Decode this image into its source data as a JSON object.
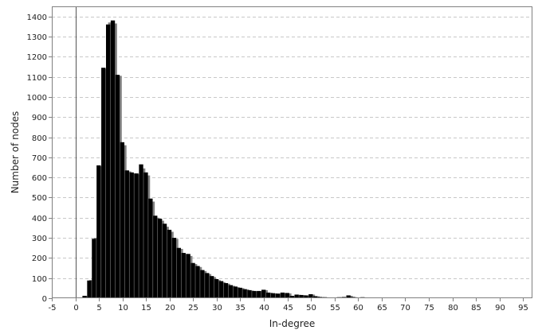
{
  "chart_data": {
    "type": "bar",
    "title": "",
    "xlabel": "In-degree",
    "ylabel": "Number of nodes",
    "xlim": [
      -5,
      97
    ],
    "ylim": [
      0,
      1450
    ],
    "x_ticks": [
      -5,
      0,
      5,
      10,
      15,
      20,
      25,
      30,
      35,
      40,
      45,
      50,
      55,
      60,
      65,
      70,
      75,
      80,
      85,
      90,
      95
    ],
    "y_ticks": [
      0,
      100,
      200,
      300,
      400,
      500,
      600,
      700,
      800,
      900,
      1000,
      1100,
      1200,
      1300,
      1400
    ],
    "grid": "horizontal dashed",
    "legend": "none",
    "colors": {
      "series_front": "#000000",
      "series_back": "#808080",
      "grid": "#c8c8c8",
      "zero_line": "#555555"
    },
    "series": [
      {
        "x": [
          1,
          2,
          3,
          4,
          5,
          6,
          7,
          8,
          9,
          10,
          11,
          12,
          13,
          14,
          15,
          16,
          17,
          18,
          19,
          20,
          21,
          22,
          23,
          24,
          25,
          26,
          27,
          28,
          29,
          30,
          31,
          32,
          33,
          34,
          35,
          36,
          37,
          38,
          39,
          40,
          41,
          42,
          43,
          44,
          45,
          46,
          47,
          48,
          49,
          50,
          51,
          52,
          53,
          54,
          55,
          56,
          57,
          58,
          59,
          60,
          61,
          62,
          63,
          64,
          65,
          66,
          67,
          68,
          69,
          70,
          71,
          72,
          73,
          74,
          75,
          76,
          77,
          78,
          79,
          80,
          81,
          82,
          83,
          84,
          85,
          86,
          87,
          88,
          89,
          90,
          91,
          92,
          93,
          94,
          95
        ],
        "values": [
          0,
          12,
          88,
          295,
          660,
          1145,
          1360,
          1380,
          1110,
          775,
          635,
          625,
          620,
          665,
          625,
          495,
          410,
          395,
          370,
          340,
          300,
          250,
          225,
          220,
          175,
          160,
          140,
          125,
          110,
          95,
          85,
          75,
          65,
          58,
          52,
          45,
          40,
          36,
          36,
          42,
          28,
          25,
          23,
          28,
          26,
          12,
          18,
          16,
          14,
          20,
          10,
          6,
          5,
          4,
          3,
          5,
          6,
          14,
          6,
          4,
          5,
          3,
          2,
          2,
          3,
          1,
          1,
          1,
          1,
          1,
          0,
          0,
          0,
          0,
          0,
          0,
          0,
          0,
          0,
          0,
          0,
          0,
          0,
          0,
          0,
          0,
          0,
          0,
          0,
          0,
          0,
          0,
          0,
          0,
          0
        ]
      },
      {
        "x": [
          1,
          2,
          3,
          4,
          5,
          6,
          7,
          8,
          9,
          10,
          11,
          12,
          13,
          14,
          15,
          16,
          17,
          18,
          19,
          20,
          21,
          22,
          23,
          24,
          25,
          26,
          27,
          28,
          29,
          30,
          31,
          32,
          33,
          34,
          35,
          36,
          37,
          38,
          39,
          40,
          41,
          42,
          43,
          44,
          45,
          46,
          47,
          48,
          49,
          50,
          51,
          52,
          53,
          54,
          55,
          56,
          57,
          58,
          59,
          60,
          61,
          62,
          63,
          64,
          65,
          66,
          67,
          68,
          69,
          70,
          71,
          72,
          73,
          74,
          75,
          76,
          77,
          78,
          79,
          80,
          81,
          82,
          83,
          84,
          85,
          86,
          87,
          88,
          89,
          90,
          91,
          92,
          93,
          94,
          95
        ],
        "values": [
          0,
          10,
          90,
          300,
          655,
          1140,
          1370,
          1365,
          1105,
          760,
          630,
          620,
          615,
          645,
          610,
          480,
          400,
          385,
          355,
          330,
          295,
          245,
          220,
          210,
          170,
          155,
          135,
          120,
          105,
          90,
          80,
          72,
          62,
          55,
          50,
          44,
          38,
          35,
          35,
          40,
          27,
          24,
          22,
          26,
          24,
          11,
          17,
          15,
          13,
          18,
          9,
          5,
          4,
          3,
          3,
          4,
          5,
          12,
          5,
          3,
          4,
          2,
          2,
          2,
          2,
          1,
          1,
          1,
          1,
          1,
          0,
          0,
          0,
          0,
          0,
          0,
          0,
          0,
          0,
          0,
          0,
          0,
          0,
          0,
          0,
          0,
          0,
          0,
          0,
          0,
          0,
          0,
          0,
          0,
          0
        ]
      }
    ]
  }
}
